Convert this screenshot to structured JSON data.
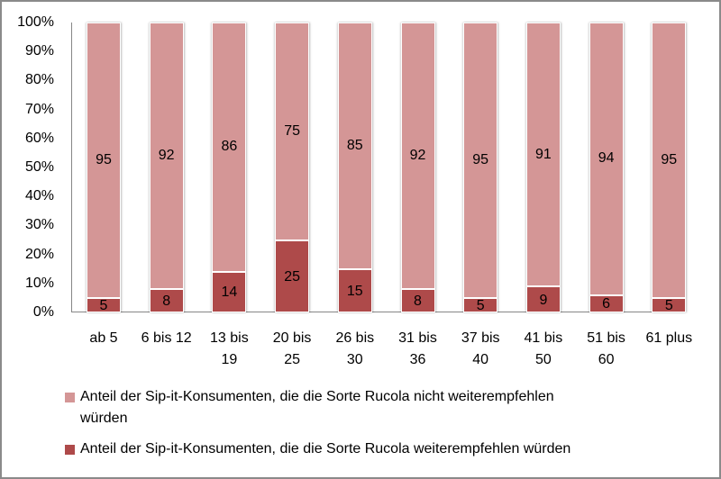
{
  "chart_data": {
    "type": "bar",
    "stacked": true,
    "percent_stacked": true,
    "title": "",
    "xlabel": "",
    "ylabel": "",
    "ylim": [
      0,
      100
    ],
    "y_ticks": [
      "0%",
      "10%",
      "20%",
      "30%",
      "40%",
      "50%",
      "60%",
      "70%",
      "80%",
      "90%",
      "100%"
    ],
    "categories": [
      [
        "ab 5"
      ],
      [
        "6 bis 12"
      ],
      [
        "13 bis",
        "19"
      ],
      [
        "20 bis",
        "25"
      ],
      [
        "26 bis",
        "30"
      ],
      [
        "31 bis",
        "36"
      ],
      [
        "37 bis",
        "40"
      ],
      [
        "41 bis",
        "50"
      ],
      [
        "51 bis",
        "60"
      ],
      [
        "61 plus"
      ]
    ],
    "series": [
      {
        "name": "Anteil der Sip-it-Konsumenten, die die Sorte Rucola weiterempfehlen würden",
        "color": "#ae4a4a",
        "values": [
          5,
          8,
          14,
          25,
          15,
          8,
          5,
          9,
          6,
          5
        ]
      },
      {
        "name": "Anteil der Sip-it-Konsumenten, die die Sorte Rucola nicht weiterempfehlen würden",
        "color": "#d49696",
        "values": [
          95,
          92,
          86,
          75,
          85,
          92,
          95,
          91,
          94,
          95
        ]
      }
    ],
    "legend": {
      "position": "bottom",
      "entries": [
        {
          "line1": "Anteil der Sip-it-Konsumenten, die die Sorte Rucola nicht weiterempfehlen",
          "line2": "würden",
          "color": "#d49696"
        },
        {
          "line1": "Anteil der Sip-it-Konsumenten, die die Sorte Rucola weiterempfehlen würden",
          "color": "#ae4a4a"
        }
      ]
    },
    "grid": false
  }
}
